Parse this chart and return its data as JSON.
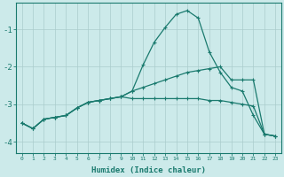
{
  "xlabel": "Humidex (Indice chaleur)",
  "x": [
    0,
    1,
    2,
    3,
    4,
    5,
    6,
    7,
    8,
    9,
    10,
    11,
    12,
    13,
    14,
    15,
    16,
    17,
    18,
    19,
    20,
    21,
    22,
    23
  ],
  "line_max": [
    -3.5,
    -3.65,
    -3.4,
    -3.35,
    -3.3,
    -3.1,
    -2.95,
    -2.9,
    -2.85,
    -2.8,
    -2.65,
    -1.95,
    -1.35,
    -0.95,
    -0.6,
    -0.5,
    -0.7,
    -1.6,
    -2.15,
    -2.55,
    -2.65,
    -3.3,
    -3.8,
    -3.85
  ],
  "line_mean": [
    -3.5,
    -3.65,
    -3.4,
    -3.35,
    -3.3,
    -3.1,
    -2.95,
    -2.9,
    -2.85,
    -2.8,
    -2.65,
    -2.55,
    -2.45,
    -2.35,
    -2.25,
    -2.15,
    -2.1,
    -2.05,
    -2.0,
    -2.35,
    -2.35,
    -2.35,
    -3.8,
    -3.85
  ],
  "line_min": [
    -3.5,
    -3.65,
    -3.4,
    -3.35,
    -3.3,
    -3.1,
    -2.95,
    -2.9,
    -2.85,
    -2.8,
    -2.85,
    -2.85,
    -2.85,
    -2.85,
    -2.85,
    -2.85,
    -2.85,
    -2.9,
    -2.9,
    -2.95,
    -3.0,
    -3.05,
    -3.8,
    -3.85
  ],
  "bg_color": "#cceaea",
  "line_color": "#1a7a6e",
  "grid_color": "#aacccc",
  "ylim": [
    -4.3,
    -0.3
  ],
  "xlim": [
    -0.5,
    23.5
  ],
  "yticks": [
    -4,
    -3,
    -2,
    -1
  ]
}
